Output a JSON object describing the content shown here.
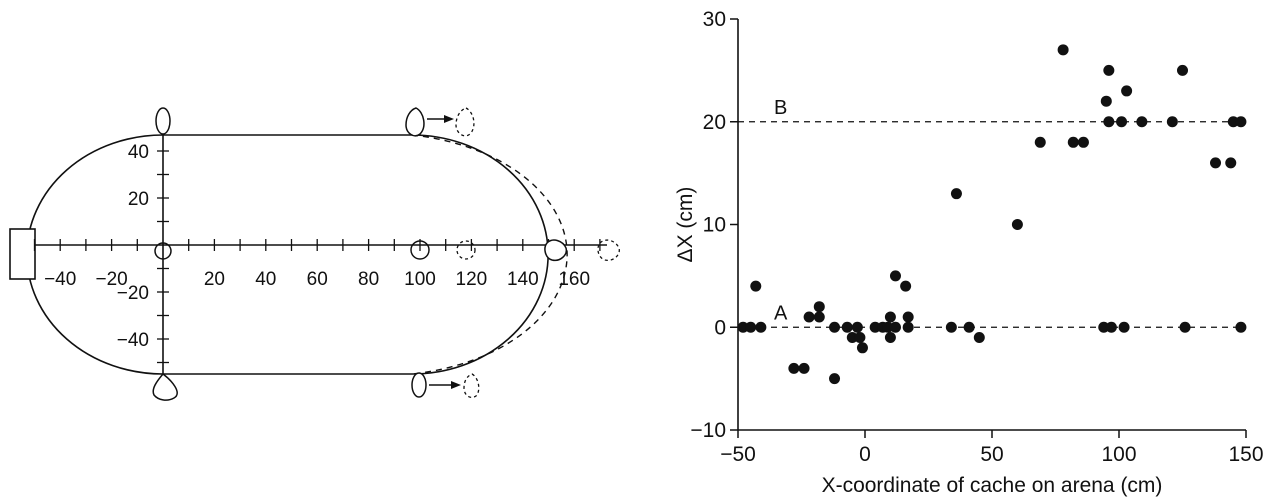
{
  "arena": {
    "x_ticks": [
      "-40",
      "-20",
      "20",
      "40",
      "60",
      "80",
      "100",
      "120",
      "140",
      "160"
    ],
    "y_ticks": [
      "40",
      "20",
      "-20",
      "-40"
    ],
    "landmark_x_values": [
      0,
      100,
      120
    ]
  },
  "chart_data": {
    "type": "scatter",
    "title": "",
    "xlabel": "X-coordinate of cache on arena (cm)",
    "ylabel": "ΔX (cm)",
    "xlim": [
      -50,
      150
    ],
    "ylim": [
      -10,
      30
    ],
    "x_ticks": [
      "-50",
      "0",
      "50",
      "100",
      "150"
    ],
    "y_ticks": [
      "-10",
      "0",
      "10",
      "20",
      "30"
    ],
    "grid": false,
    "reference_lines": [
      {
        "label": "A",
        "y": 0
      },
      {
        "label": "B",
        "y": 20
      }
    ],
    "points": [
      [
        -48,
        0
      ],
      [
        -45,
        0
      ],
      [
        -41,
        0
      ],
      [
        -43,
        4
      ],
      [
        -28,
        -4
      ],
      [
        -24,
        -4
      ],
      [
        -22,
        1
      ],
      [
        -18,
        1
      ],
      [
        -18,
        2
      ],
      [
        -12,
        -5
      ],
      [
        -12,
        0
      ],
      [
        -7,
        0
      ],
      [
        -5,
        -1
      ],
      [
        -3,
        0
      ],
      [
        -2,
        -1
      ],
      [
        -1,
        -2
      ],
      [
        4,
        0
      ],
      [
        7,
        0
      ],
      [
        9,
        0
      ],
      [
        10,
        1
      ],
      [
        10,
        -1
      ],
      [
        12,
        0
      ],
      [
        12,
        5
      ],
      [
        16,
        4
      ],
      [
        17,
        1
      ],
      [
        17,
        0
      ],
      [
        34,
        0
      ],
      [
        36,
        13
      ],
      [
        41,
        0
      ],
      [
        45,
        -1
      ],
      [
        60,
        10
      ],
      [
        69,
        18
      ],
      [
        78,
        27
      ],
      [
        82,
        18
      ],
      [
        86,
        18
      ],
      [
        94,
        0
      ],
      [
        95,
        22
      ],
      [
        96,
        20
      ],
      [
        96,
        25
      ],
      [
        97,
        0
      ],
      [
        101,
        20
      ],
      [
        102,
        0
      ],
      [
        103,
        23
      ],
      [
        109,
        20
      ],
      [
        121,
        20
      ],
      [
        125,
        25
      ],
      [
        126,
        0
      ],
      [
        138,
        16
      ],
      [
        144,
        16
      ],
      [
        145,
        20
      ],
      [
        148,
        20
      ],
      [
        148,
        0
      ]
    ]
  }
}
